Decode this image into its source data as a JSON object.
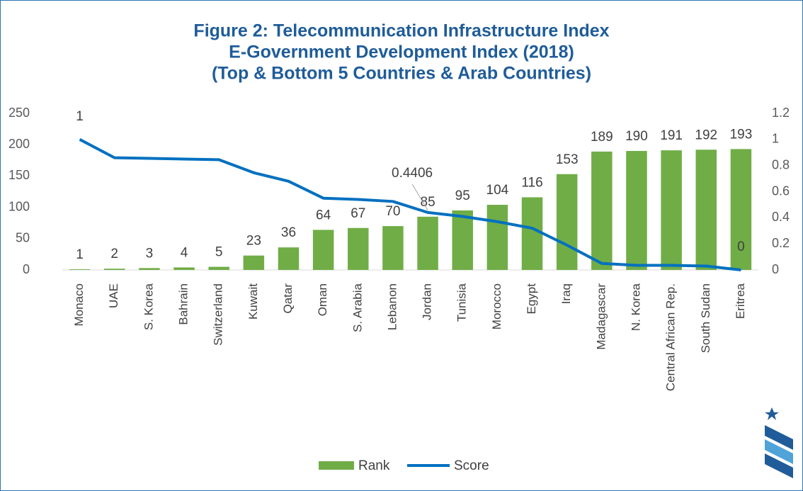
{
  "chart_data": {
    "type": "bar_line",
    "title": [
      "Figure 2: Telecommunication Infrastructure Index",
      "E-Government Development Index (2018)",
      "(Top & Bottom 5 Countries & Arab Countries)"
    ],
    "categories": [
      "Monaco",
      "UAE",
      "S. Korea",
      "Bahrain",
      "Switzerland",
      "Kuwait",
      "Qatar",
      "Oman",
      "S. Arabia",
      "Lebanon",
      "Jordan",
      "Tunisia",
      "Morocco",
      "Egypt",
      "Iraq",
      "Madagascar",
      "N. Korea",
      "Central African Rep.",
      "South Sudan",
      "Eritrea"
    ],
    "series": [
      {
        "name": "Rank",
        "type": "bar",
        "color": "#70ad47",
        "axis": "y",
        "values": [
          1,
          2,
          3,
          4,
          5,
          23,
          36,
          64,
          67,
          70,
          85,
          95,
          104,
          116,
          153,
          189,
          190,
          191,
          192,
          193
        ]
      },
      {
        "name": "Score",
        "type": "line",
        "color": "#0070c0",
        "axis": "y2",
        "values": [
          1,
          0.86,
          0.855,
          0.85,
          0.845,
          0.745,
          0.68,
          0.55,
          0.54,
          0.525,
          0.4406,
          0.41,
          0.37,
          0.32,
          0.19,
          0.05,
          0.035,
          0.035,
          0.03,
          0
        ],
        "value_labels": [
          "1",
          null,
          null,
          null,
          null,
          null,
          null,
          null,
          null,
          null,
          "0.4406",
          null,
          null,
          null,
          null,
          null,
          null,
          null,
          null,
          "0"
        ]
      }
    ],
    "ylim": [
      0,
      250
    ],
    "yticks": [
      0,
      50,
      100,
      150,
      200,
      250
    ],
    "y2lim": [
      0,
      1.2
    ],
    "y2ticks": [
      0,
      0.2,
      0.4,
      0.6,
      0.8,
      1,
      1.2
    ],
    "grid": false,
    "legend": "bottom"
  }
}
